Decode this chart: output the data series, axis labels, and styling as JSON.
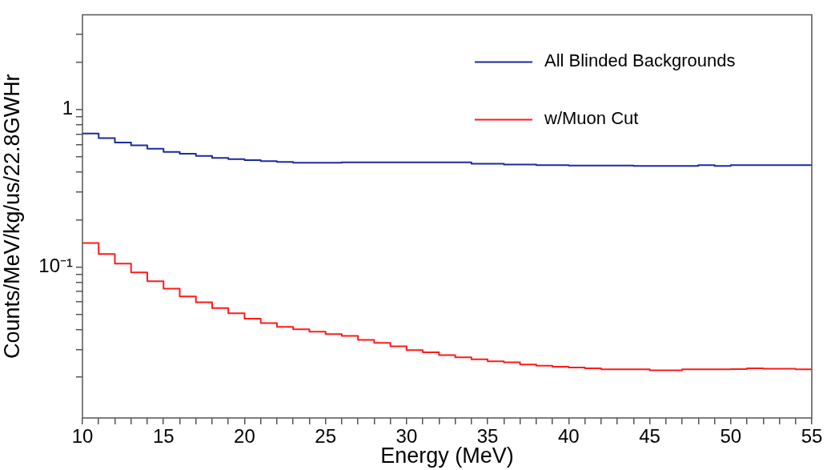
{
  "chart_data": {
    "type": "step",
    "xlabel": "Energy (MeV)",
    "ylabel": "Counts/MeV/kg/us/22.8GWHr",
    "x": [
      10,
      11,
      12,
      13,
      14,
      15,
      16,
      17,
      18,
      19,
      20,
      21,
      22,
      23,
      24,
      25,
      26,
      27,
      28,
      29,
      30,
      31,
      32,
      33,
      34,
      35,
      36,
      37,
      38,
      39,
      40,
      41,
      42,
      43,
      44,
      45,
      46,
      47,
      48,
      49,
      50,
      51,
      52,
      53,
      54,
      55
    ],
    "series": [
      {
        "name": "All Blinded Backgrounds",
        "color": "#1c2aa0",
        "values": [
          0.705,
          0.658,
          0.617,
          0.592,
          0.563,
          0.538,
          0.524,
          0.508,
          0.493,
          0.484,
          0.477,
          0.47,
          0.465,
          0.459,
          0.459,
          0.459,
          0.462,
          0.462,
          0.462,
          0.462,
          0.462,
          0.462,
          0.462,
          0.462,
          0.453,
          0.453,
          0.448,
          0.448,
          0.444,
          0.444,
          0.441,
          0.441,
          0.441,
          0.441,
          0.438,
          0.438,
          0.438,
          0.438,
          0.443,
          0.438,
          0.443,
          0.443,
          0.443,
          0.443,
          0.443,
          0.443
        ]
      },
      {
        "name": "w/Muon Cut",
        "color": "#ff1a1a",
        "values": [
          0.142,
          0.121,
          0.105,
          0.0923,
          0.0811,
          0.0729,
          0.0651,
          0.0597,
          0.0549,
          0.0509,
          0.047,
          0.044,
          0.0417,
          0.0402,
          0.0388,
          0.0375,
          0.0365,
          0.0344,
          0.033,
          0.0314,
          0.0297,
          0.0287,
          0.0276,
          0.0267,
          0.0259,
          0.0252,
          0.0248,
          0.024,
          0.0236,
          0.0233,
          0.023,
          0.0227,
          0.0224,
          0.0224,
          0.0224,
          0.0221,
          0.0221,
          0.0224,
          0.0224,
          0.0224,
          0.0225,
          0.0227,
          0.0226,
          0.0226,
          0.0224,
          0.0224
        ]
      }
    ],
    "xlim": [
      10,
      55
    ],
    "xticks": [
      10,
      {
        "value": 11,
        "label": null
      },
      {
        "value": 12,
        "label": null
      },
      {
        "value": 13,
        "label": null
      },
      {
        "value": 14,
        "label": null
      },
      15,
      {
        "value": 16,
        "label": null
      },
      {
        "value": 17,
        "label": null
      },
      {
        "value": 18,
        "label": null
      },
      {
        "value": 19,
        "label": null
      },
      20,
      {
        "value": 21,
        "label": null
      },
      {
        "value": 22,
        "label": null
      },
      {
        "value": 23,
        "label": null
      },
      {
        "value": 24,
        "label": null
      },
      25,
      {
        "value": 26,
        "label": null
      },
      {
        "value": 27,
        "label": null
      },
      {
        "value": 28,
        "label": null
      },
      {
        "value": 29,
        "label": null
      },
      30,
      {
        "value": 31,
        "label": null
      },
      {
        "value": 32,
        "label": null
      },
      {
        "value": 33,
        "label": null
      },
      {
        "value": 34,
        "label": null
      },
      35,
      {
        "value": 36,
        "label": null
      },
      {
        "value": 37,
        "label": null
      },
      {
        "value": 38,
        "label": null
      },
      {
        "value": 39,
        "label": null
      },
      40,
      {
        "value": 41,
        "label": null
      },
      {
        "value": 42,
        "label": null
      },
      {
        "value": 43,
        "label": null
      },
      {
        "value": 44,
        "label": null
      },
      45,
      {
        "value": 46,
        "label": null
      },
      {
        "value": 47,
        "label": null
      },
      {
        "value": 48,
        "label": null
      },
      {
        "value": 49,
        "label": null
      },
      50,
      {
        "value": 51,
        "label": null
      },
      {
        "value": 52,
        "label": null
      },
      {
        "value": 53,
        "label": null
      },
      {
        "value": 54,
        "label": null
      },
      55
    ],
    "ylim": [
      0.011,
      4
    ],
    "yticks": [
      {
        "value": 0.02,
        "label": null
      },
      {
        "value": 0.03,
        "label": null
      },
      {
        "value": 0.04,
        "label": null
      },
      {
        "value": 0.05,
        "label": null
      },
      {
        "value": 0.06,
        "label": null
      },
      {
        "value": 0.07,
        "label": null
      },
      {
        "value": 0.08,
        "label": null
      },
      {
        "value": 0.09,
        "label": null
      },
      {
        "value": 0.1,
        "label": "10⁻¹"
      },
      {
        "value": 0.2,
        "label": null
      },
      {
        "value": 0.3,
        "label": null
      },
      {
        "value": 0.4,
        "label": null
      },
      {
        "value": 0.5,
        "label": null
      },
      {
        "value": 0.6,
        "label": null
      },
      {
        "value": 0.7,
        "label": null
      },
      {
        "value": 0.8,
        "label": null
      },
      {
        "value": 0.9,
        "label": null
      },
      1,
      {
        "value": 2,
        "label": null
      },
      {
        "value": 3,
        "label": null
      }
    ],
    "log": "y",
    "legend": "top right"
  }
}
